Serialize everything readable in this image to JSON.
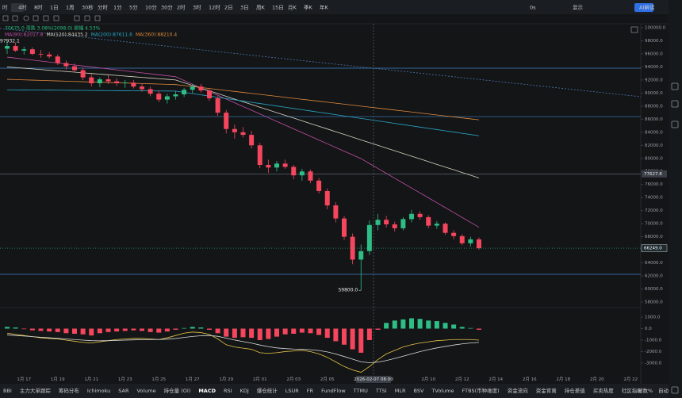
{
  "toolbar": {
    "intervals": [
      "时",
      "4时",
      "8时",
      "1日",
      "1周",
      "30秒",
      "分时",
      "1分",
      "5分",
      "10分",
      "30分",
      "2时",
      "3时",
      "12时",
      "2日",
      "3日",
      "周K",
      "15日",
      "月K",
      "季K",
      "年K"
    ],
    "right": [
      "0s",
      "显示",
      "AI解读"
    ]
  },
  "indicator_tabs": [
    "BBI",
    "主力大单跟踪",
    "筹码分布",
    "Ichimoku",
    "SAR",
    "Volume",
    "持仓量 (OI)",
    "MACD",
    "RSI",
    "KDJ",
    "爆仓统计",
    "LSUR",
    "FR",
    "FundFlow",
    "TTMU",
    "TTSI",
    "MLR",
    "BSV",
    "TVolume",
    "FTBS(币种维度)",
    "资金流向",
    "资金背离",
    "持仓差值",
    "买卖热度",
    "社区指标"
  ],
  "scale_options": [
    "对数",
    "%",
    "自动"
  ],
  "chart_data": [
    {
      "type": "candlestick",
      "info_line": "70675.0  涨跌 3.08%(2098.0)  振幅 4.53%",
      "categories": [
        null,
        null,
        "1月 17",
        null,
        null,
        null,
        "1月 19",
        null,
        null,
        null,
        "1月 21",
        null,
        null,
        null,
        "1月 23",
        null,
        null,
        null,
        "1月 25",
        null,
        null,
        null,
        "1月 27",
        null,
        null,
        null,
        "1月 29",
        null,
        null,
        null,
        "2月 01",
        null,
        null,
        null,
        "2月 03",
        null,
        null,
        null,
        "2月 05",
        null,
        null,
        null,
        null,
        null,
        null,
        null,
        null,
        null,
        null,
        null,
        "2月 10",
        null,
        null,
        null,
        "2月 12",
        null,
        null,
        null,
        "2月 14",
        null,
        null,
        null,
        "2月 16",
        null,
        null,
        null,
        "2月 18",
        null,
        null,
        null,
        "2月 20",
        null,
        null,
        null,
        "2月 22",
        null,
        null,
        null
      ],
      "open": [
        96800,
        97200,
        96500,
        96700,
        96000,
        95900,
        95600,
        94600,
        94100,
        93500,
        92400,
        91500,
        92100,
        91800,
        91500,
        91600,
        91000,
        90600,
        89900,
        89000,
        89500,
        89800,
        90500,
        91000,
        90400,
        89200,
        87000,
        84500,
        84000,
        83600,
        82000,
        79000,
        78600,
        79200,
        78700,
        77400,
        78000,
        76600,
        75000,
        72800,
        70800,
        68000,
        64500,
        65800,
        69800,
        70600,
        69900,
        69300,
        70700,
        71500,
        71000,
        69700,
        70000,
        68600,
        68100,
        67000,
        67600,
        null,
        null,
        null,
        null,
        null,
        null,
        null,
        null,
        null,
        null,
        null,
        null,
        null,
        null,
        null,
        null,
        null,
        null,
        null,
        null,
        null
      ],
      "high": [
        97932.1,
        97700,
        97100,
        97000,
        96600,
        96300,
        95900,
        95000,
        94500,
        93900,
        92900,
        92400,
        92700,
        92300,
        92000,
        92000,
        91500,
        91000,
        90400,
        89900,
        90300,
        90800,
        91400,
        91400,
        90700,
        89500,
        87400,
        85200,
        84800,
        84200,
        82400,
        79800,
        79600,
        79800,
        79000,
        78400,
        78300,
        77000,
        75400,
        73300,
        71200,
        68500,
        66800,
        70500,
        71500,
        71200,
        70300,
        71000,
        72100,
        71900,
        71300,
        70400,
        70200,
        69000,
        68400,
        68000,
        67900,
        null,
        null,
        null,
        null,
        null,
        null,
        null,
        null,
        null,
        null,
        null,
        null,
        null,
        null,
        null,
        null,
        null,
        null,
        null,
        null,
        null
      ],
      "low": [
        96000,
        96300,
        95900,
        95800,
        95400,
        95300,
        94300,
        93600,
        93200,
        92000,
        91000,
        90900,
        91400,
        91100,
        90800,
        90700,
        90200,
        89500,
        88600,
        88400,
        89000,
        89400,
        90000,
        90100,
        88800,
        86500,
        83800,
        83000,
        83200,
        81500,
        78500,
        77800,
        78000,
        78400,
        76800,
        76600,
        76200,
        74600,
        72200,
        70200,
        67500,
        63800,
        59800,
        65200,
        69000,
        69400,
        68800,
        69000,
        70200,
        70600,
        69300,
        69200,
        68300,
        67600,
        66700,
        66500,
        66000,
        null,
        null,
        null,
        null,
        null,
        null,
        null,
        null,
        null,
        null,
        null,
        null,
        null,
        null,
        null,
        null,
        null,
        null,
        null,
        null,
        null
      ],
      "close": [
        97200,
        96500,
        96700,
        96000,
        95900,
        95600,
        94600,
        94100,
        93500,
        92400,
        91500,
        92100,
        91800,
        91500,
        91600,
        91000,
        90600,
        89900,
        89000,
        89500,
        89800,
        90500,
        91000,
        90400,
        89200,
        87000,
        84500,
        84000,
        83600,
        82000,
        79000,
        78600,
        79200,
        78700,
        77400,
        78000,
        76600,
        75000,
        72800,
        70800,
        68000,
        64500,
        65800,
        69800,
        70600,
        69900,
        69300,
        70700,
        71500,
        71000,
        69700,
        70000,
        68600,
        68100,
        67000,
        67600,
        66249,
        null,
        null,
        null,
        null,
        null,
        null,
        null,
        null,
        null,
        null,
        null,
        null,
        null,
        null,
        null,
        null,
        null,
        null,
        null,
        null,
        null
      ],
      "up_color": "#2ebd85",
      "down_color": "#f6465d",
      "max_label": "97932.1",
      "min_label": "59800.0",
      "last_price_label": "66249.0",
      "series": [
        {
          "name": "MA(90):82017.8",
          "color": "#c24fa5",
          "values": [
            95500,
            95350,
            95200,
            95050,
            94900,
            94750,
            94600,
            94450,
            94300,
            94150,
            94000,
            93850,
            93700,
            93550,
            93400,
            93250,
            93100,
            92950,
            92800,
            92650,
            92500,
            91930,
            91360,
            90790,
            90220,
            89650,
            89080,
            88510,
            87940,
            87370,
            86800,
            86230,
            85660,
            85090,
            84520,
            83950,
            83380,
            82810,
            82240,
            81670,
            81100,
            80530,
            79960,
            79210,
            78460,
            77710,
            76960,
            76210,
            75460,
            74710,
            73960,
            73210,
            72460,
            71710,
            70960,
            70210,
            69460,
            null,
            null,
            null,
            null,
            null,
            null,
            null,
            null,
            null,
            null,
            null,
            null,
            null,
            null,
            null,
            null,
            null,
            null,
            null,
            null,
            null
          ]
        },
        {
          "name": "MA(120):84435.2",
          "color": "#d9d2c0",
          "values": [
            94000,
            93900,
            93800,
            93700,
            93600,
            93500,
            93400,
            93300,
            93200,
            93100,
            93000,
            92900,
            92800,
            92700,
            92600,
            92500,
            92400,
            92300,
            92200,
            92100,
            92000,
            91580,
            91170,
            90750,
            90330,
            89920,
            89500,
            89080,
            88670,
            88250,
            87830,
            87420,
            87000,
            86580,
            86170,
            85750,
            85330,
            84920,
            84500,
            84080,
            83670,
            83250,
            82830,
            82420,
            82000,
            81580,
            81170,
            80750,
            80330,
            79920,
            79500,
            79080,
            78670,
            78250,
            77830,
            77420,
            77000,
            null,
            null,
            null,
            null,
            null,
            null,
            null,
            null,
            null,
            null,
            null,
            null,
            null,
            null,
            null,
            null,
            null,
            null,
            null,
            null,
            null
          ]
        },
        {
          "name": "MA(200):87611.6",
          "color": "#2aa9c9",
          "values": [
            90500,
            90490,
            90480,
            90470,
            90460,
            90450,
            90440,
            90430,
            90420,
            90410,
            90400,
            90390,
            90380,
            90370,
            90360,
            90350,
            90340,
            90330,
            90320,
            90310,
            90300,
            90110,
            89920,
            89730,
            89540,
            89350,
            89160,
            88970,
            88780,
            88590,
            88400,
            88210,
            88020,
            87830,
            87640,
            87450,
            87260,
            87070,
            86880,
            86690,
            86500,
            86310,
            86120,
            85930,
            85740,
            85550,
            85360,
            85170,
            84980,
            84790,
            84600,
            84410,
            84220,
            84030,
            83840,
            83650,
            83460,
            null,
            null,
            null,
            null,
            null,
            null,
            null,
            null,
            null,
            null,
            null,
            null,
            null,
            null,
            null,
            null,
            null,
            null,
            null,
            null,
            null
          ]
        },
        {
          "name": "MA(360):88210.4",
          "color": "#e08a3c",
          "values": [
            92100,
            92060,
            92020,
            91980,
            91940,
            91900,
            91860,
            91820,
            91780,
            91740,
            91700,
            91660,
            91620,
            91580,
            91540,
            91500,
            91460,
            91420,
            91380,
            91340,
            91300,
            91150,
            91000,
            90850,
            90700,
            90550,
            90400,
            90250,
            90100,
            89950,
            89800,
            89650,
            89500,
            89350,
            89200,
            89050,
            88900,
            88750,
            88600,
            88450,
            88300,
            88150,
            88000,
            87850,
            87700,
            87550,
            87400,
            87250,
            87100,
            86950,
            86800,
            86650,
            86500,
            86350,
            86200,
            86050,
            85900,
            null,
            null,
            null,
            null,
            null,
            null,
            null,
            null,
            null,
            null,
            null,
            null,
            null,
            null,
            null,
            null,
            null,
            null,
            null,
            null,
            null
          ]
        }
      ],
      "level_lines": [
        93810,
        86400,
        {
          "value": 77627.8,
          "label": "77627.8"
        },
        62250
      ],
      "trend_line": [
        99900,
        89440
      ],
      "crosshair_label": "2026-02-07 08:00",
      "ylim": [
        57150,
        100607
      ],
      "yticks": [
        {
          "value": 100000,
          "label": "100000.0"
        },
        {
          "value": 98000,
          "label": "98000.0"
        },
        {
          "value": 96000,
          "label": "96000.0"
        },
        {
          "value": 94000,
          "label": "94000.0"
        },
        {
          "value": 92000,
          "label": "92000.0"
        },
        {
          "value": 90000,
          "label": "90000.0"
        },
        {
          "value": 88000,
          "label": "88000.0"
        },
        {
          "value": 86000,
          "label": "86000.0"
        },
        {
          "value": 84000,
          "label": "84000.0"
        },
        {
          "value": 82000,
          "label": "82000.0"
        },
        {
          "value": 80000,
          "label": "80000.0"
        },
        {
          "value": 78000,
          "label": "78000.0"
        },
        {
          "value": 76000,
          "label": "76000.0"
        },
        {
          "value": 74000,
          "label": "74000.0"
        },
        {
          "value": 72000,
          "label": "72000.0"
        },
        {
          "value": 70000,
          "label": "70000.0"
        },
        {
          "value": 68000,
          "label": "68000.0"
        },
        {
          "value": 66000,
          "label": "66000.0"
        },
        {
          "value": 64000,
          "label": "64000.0"
        },
        {
          "value": 62000,
          "label": "62000.0"
        },
        {
          "value": 60000,
          "label": "60000.0"
        },
        {
          "value": 58000,
          "label": "58000.0"
        }
      ]
    },
    {
      "type": "macd",
      "histogram": [
        150,
        100,
        -50,
        -150,
        -200,
        -250,
        -300,
        -400,
        -450,
        -500,
        -600,
        -400,
        -300,
        -250,
        -200,
        -150,
        -200,
        -300,
        -350,
        -250,
        -100,
        50,
        150,
        100,
        -100,
        -400,
        -700,
        -800,
        -750,
        -800,
        -1000,
        -900,
        -700,
        -500,
        -450,
        -350,
        -400,
        -550,
        -800,
        -1100,
        -1400,
        -1800,
        -2100,
        -1000,
        -100,
        500,
        700,
        800,
        900,
        850,
        700,
        650,
        500,
        350,
        150,
        50,
        -100,
        null,
        null,
        null,
        null,
        null,
        null,
        null,
        null,
        null,
        null,
        null,
        null,
        null,
        null,
        null,
        null,
        null,
        null,
        null,
        null,
        null
      ],
      "series": [
        {
          "color": "#e8c547",
          "values": [
            -400,
            -500,
            -600,
            -700,
            -800,
            -850,
            -900,
            -1000,
            -1100,
            -1200,
            -1250,
            -1150,
            -1050,
            -950,
            -900,
            -850,
            -850,
            -900,
            -950,
            -800,
            -600,
            -400,
            -300,
            -350,
            -500,
            -900,
            -1400,
            -1600,
            -1700,
            -1800,
            -2100,
            -2150,
            -2100,
            -2000,
            -1950,
            -1900,
            -2000,
            -2200,
            -2500,
            -2900,
            -3300,
            -3600,
            -3800,
            -3300,
            -2700,
            -2200,
            -1900,
            -1600,
            -1400,
            -1250,
            -1150,
            -1050,
            -1000,
            -950,
            -950,
            -950,
            -1000,
            null,
            null,
            null,
            null,
            null,
            null,
            null,
            null,
            null,
            null,
            null,
            null,
            null,
            null,
            null,
            null,
            null,
            null,
            null,
            null,
            null
          ]
        },
        {
          "color": "#d9d9d9",
          "values": [
            -550,
            -600,
            -650,
            -700,
            -750,
            -800,
            -850,
            -900,
            -950,
            -1000,
            -1050,
            -1060,
            -1050,
            -1030,
            -1000,
            -980,
            -960,
            -950,
            -950,
            -920,
            -860,
            -770,
            -680,
            -620,
            -600,
            -670,
            -830,
            -990,
            -1130,
            -1260,
            -1430,
            -1570,
            -1680,
            -1740,
            -1780,
            -1800,
            -1840,
            -1910,
            -2030,
            -2210,
            -2430,
            -2660,
            -2890,
            -2970,
            -2920,
            -2780,
            -2600,
            -2400,
            -2200,
            -2000,
            -1830,
            -1680,
            -1550,
            -1430,
            -1330,
            -1250,
            -1200,
            null,
            null,
            null,
            null,
            null,
            null,
            null,
            null,
            null,
            null,
            null,
            null,
            null,
            null,
            null,
            null,
            null,
            null,
            null,
            null,
            null
          ]
        }
      ],
      "ylim": [
        -3970,
        1690
      ],
      "yticks": [
        {
          "value": 1000,
          "label": "1000.0"
        },
        {
          "value": 0,
          "label": "0.0"
        },
        {
          "value": -1000,
          "label": "-1000.0"
        },
        {
          "value": -2000,
          "label": "-2000.0"
        },
        {
          "value": -3000,
          "label": "-3000.0"
        }
      ]
    }
  ]
}
